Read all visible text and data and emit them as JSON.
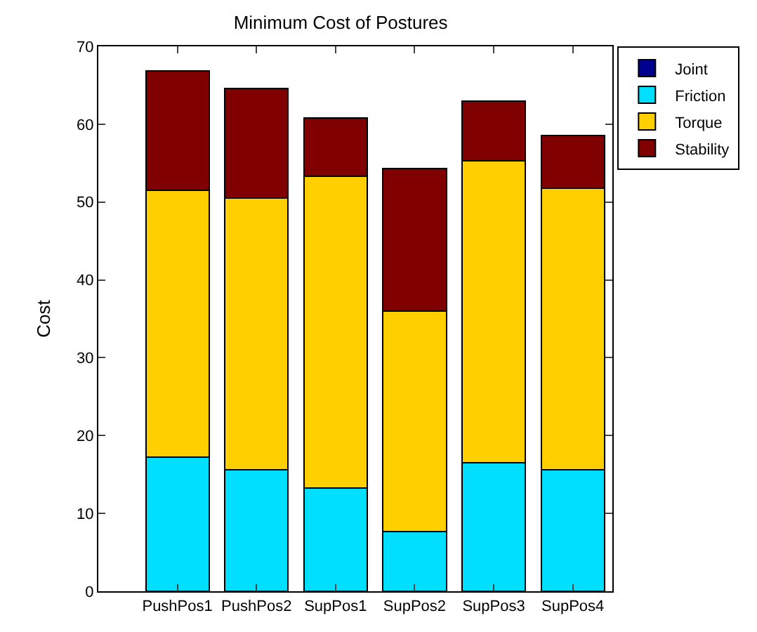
{
  "chart_data": {
    "type": "bar",
    "title": "Minimum Cost of Postures",
    "ylabel": "Cost",
    "categories": [
      "PushPos1",
      "PushPos2",
      "SupPos1",
      "SupPos2",
      "SupPos3",
      "SupPos4"
    ],
    "stacked": true,
    "series": [
      {
        "name": "Joint",
        "color": "#00008f",
        "values": [
          0,
          0,
          0,
          0,
          0,
          0
        ]
      },
      {
        "name": "Friction",
        "color": "#00dfff",
        "values": [
          17.2,
          15.6,
          13.3,
          7.7,
          16.5,
          15.6
        ]
      },
      {
        "name": "Torque",
        "color": "#ffcf00",
        "values": [
          34.3,
          34.9,
          40.0,
          28.3,
          38.8,
          36.2
        ]
      },
      {
        "name": "Stability",
        "color": "#800000",
        "values": [
          15.3,
          14.1,
          7.5,
          18.3,
          7.7,
          6.7
        ]
      }
    ],
    "ylim": [
      0,
      70
    ],
    "yticks": [
      0,
      10,
      20,
      30,
      40,
      50,
      60,
      70
    ],
    "legend": "top right"
  }
}
